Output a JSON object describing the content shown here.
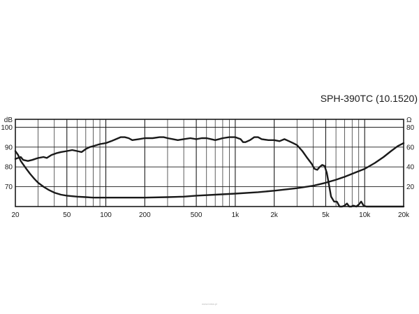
{
  "title": "SPH-390TC (10.1520)",
  "watermark": "www.lokia.pl",
  "chart_data": {
    "type": "line",
    "x_scale": "log",
    "xlim": [
      20,
      20000
    ],
    "x_ticks": [
      {
        "value": 20,
        "label": "20"
      },
      {
        "value": 50,
        "label": "50"
      },
      {
        "value": 100,
        "label": "100"
      },
      {
        "value": 200,
        "label": "200"
      },
      {
        "value": 500,
        "label": "500"
      },
      {
        "value": 1000,
        "label": "1k"
      },
      {
        "value": 2000,
        "label": "2k"
      },
      {
        "value": 5000,
        "label": "5k"
      },
      {
        "value": 10000,
        "label": "10k"
      },
      {
        "value": 20000,
        "label": "20k"
      }
    ],
    "y_left": {
      "unit": "dB",
      "lim": [
        60,
        104
      ],
      "ticks": [
        {
          "value": 70,
          "label": "70"
        },
        {
          "value": 80,
          "label": "80"
        },
        {
          "value": 90,
          "label": "90"
        },
        {
          "value": 100,
          "label": "100"
        }
      ]
    },
    "y_right": {
      "unit": "Ω",
      "lim": [
        0,
        88
      ],
      "ticks": [
        {
          "value": 20,
          "label": "20"
        },
        {
          "value": 40,
          "label": "40"
        },
        {
          "value": 60,
          "label": "60"
        },
        {
          "value": 80,
          "label": "80"
        }
      ]
    },
    "grid": true,
    "line_color": "#1a1a1a",
    "series": [
      {
        "axis": "left",
        "points": [
          [
            20,
            84
          ],
          [
            21,
            84.5
          ],
          [
            22,
            85
          ],
          [
            23,
            83.5
          ],
          [
            25,
            83
          ],
          [
            27,
            83.5
          ],
          [
            30,
            84.5
          ],
          [
            33,
            85
          ],
          [
            35,
            84.5
          ],
          [
            38,
            86
          ],
          [
            42,
            87
          ],
          [
            45,
            87.5
          ],
          [
            50,
            88
          ],
          [
            55,
            88.5
          ],
          [
            60,
            88
          ],
          [
            65,
            87.5
          ],
          [
            70,
            89
          ],
          [
            75,
            90
          ],
          [
            80,
            90.5
          ],
          [
            90,
            91.5
          ],
          [
            100,
            92
          ],
          [
            110,
            93
          ],
          [
            120,
            94
          ],
          [
            130,
            95
          ],
          [
            140,
            95
          ],
          [
            150,
            94.5
          ],
          [
            160,
            93.5
          ],
          [
            180,
            94
          ],
          [
            200,
            94.5
          ],
          [
            230,
            94.5
          ],
          [
            260,
            95
          ],
          [
            280,
            95
          ],
          [
            300,
            94.5
          ],
          [
            330,
            94
          ],
          [
            360,
            93.5
          ],
          [
            400,
            94
          ],
          [
            450,
            94.5
          ],
          [
            500,
            94
          ],
          [
            550,
            94.5
          ],
          [
            600,
            94.5
          ],
          [
            650,
            94
          ],
          [
            700,
            93.5
          ],
          [
            750,
            94
          ],
          [
            800,
            94.5
          ],
          [
            900,
            95
          ],
          [
            1000,
            95
          ],
          [
            1100,
            94
          ],
          [
            1150,
            92.5
          ],
          [
            1200,
            92.5
          ],
          [
            1300,
            93.5
          ],
          [
            1400,
            95
          ],
          [
            1500,
            95
          ],
          [
            1600,
            94
          ],
          [
            1800,
            93.5
          ],
          [
            2000,
            93.5
          ],
          [
            2200,
            93
          ],
          [
            2400,
            94
          ],
          [
            2600,
            93
          ],
          [
            2800,
            92
          ],
          [
            3000,
            91
          ],
          [
            3300,
            88
          ],
          [
            3600,
            84.5
          ],
          [
            3900,
            81.5
          ],
          [
            4100,
            79
          ],
          [
            4300,
            78.5
          ],
          [
            4500,
            80
          ],
          [
            4700,
            81
          ],
          [
            4900,
            80.5
          ],
          [
            5100,
            77
          ],
          [
            5300,
            71
          ],
          [
            5500,
            65
          ],
          [
            5800,
            62.5
          ],
          [
            6100,
            62.5
          ],
          [
            6400,
            60
          ],
          [
            6700,
            60
          ],
          [
            7000,
            60.5
          ],
          [
            7300,
            61.5
          ],
          [
            7600,
            60
          ],
          [
            7900,
            60
          ],
          [
            8200,
            60.5
          ],
          [
            8600,
            60
          ],
          [
            9000,
            61
          ],
          [
            9400,
            62.5
          ],
          [
            9800,
            60.5
          ],
          [
            10300,
            60
          ],
          [
            12000,
            60
          ],
          [
            15000,
            60
          ],
          [
            20000,
            60
          ]
        ]
      },
      {
        "axis": "right",
        "points": [
          [
            20,
            56
          ],
          [
            21,
            52
          ],
          [
            22,
            46
          ],
          [
            24,
            39
          ],
          [
            26,
            33
          ],
          [
            28,
            28
          ],
          [
            30,
            24
          ],
          [
            33,
            20
          ],
          [
            36,
            17
          ],
          [
            40,
            14
          ],
          [
            45,
            12
          ],
          [
            50,
            11
          ],
          [
            60,
            10
          ],
          [
            70,
            9.5
          ],
          [
            80,
            9
          ],
          [
            100,
            9
          ],
          [
            150,
            9
          ],
          [
            200,
            9
          ],
          [
            300,
            9.5
          ],
          [
            400,
            10
          ],
          [
            500,
            11
          ],
          [
            700,
            12
          ],
          [
            1000,
            13
          ],
          [
            1500,
            14.5
          ],
          [
            2000,
            16
          ],
          [
            3000,
            18.5
          ],
          [
            4000,
            21
          ],
          [
            5000,
            24
          ],
          [
            6000,
            27
          ],
          [
            7000,
            30
          ],
          [
            8000,
            33
          ],
          [
            10000,
            38
          ],
          [
            12000,
            44
          ],
          [
            14000,
            50
          ],
          [
            16000,
            56
          ],
          [
            18000,
            61
          ],
          [
            20000,
            64
          ]
        ]
      }
    ]
  }
}
